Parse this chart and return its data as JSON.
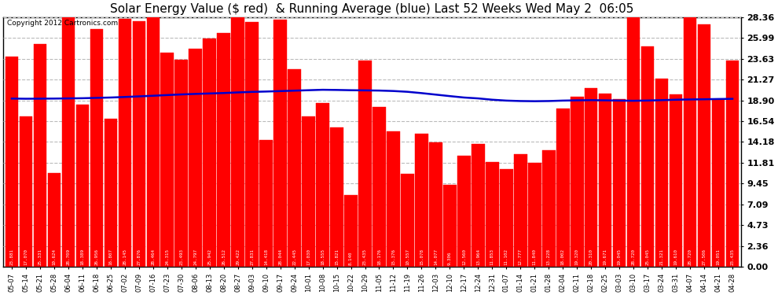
{
  "title": "Solar Energy Value ($ red)  & Running Average (blue) Last 52 Weeks Wed May 2  06:05",
  "copyright": "Copyright 2012 Cartronics.com",
  "bar_color": "#FF0000",
  "avg_line_color": "#0000CC",
  "background_color": "#FFFFFF",
  "grid_color": "#BBBBBB",
  "ylim": [
    0,
    28.36
  ],
  "yticks": [
    0.0,
    2.36,
    4.73,
    7.09,
    9.45,
    11.81,
    14.18,
    16.54,
    18.9,
    21.27,
    23.63,
    25.99,
    28.36
  ],
  "labels": [
    "05-07",
    "05-14",
    "05-21",
    "05-28",
    "06-04",
    "06-11",
    "06-18",
    "06-25",
    "07-02",
    "07-09",
    "07-16",
    "07-23",
    "07-30",
    "08-06",
    "08-13",
    "08-20",
    "08-27",
    "09-03",
    "09-10",
    "09-17",
    "09-24",
    "10-01",
    "10-08",
    "10-15",
    "10-22",
    "10-29",
    "11-05",
    "11-12",
    "11-19",
    "11-26",
    "12-03",
    "12-10",
    "12-17",
    "12-24",
    "12-31",
    "01-07",
    "01-14",
    "01-21",
    "01-28",
    "02-04",
    "02-11",
    "02-18",
    "02-25",
    "03-03",
    "03-10",
    "03-17",
    "03-24",
    "03-31",
    "04-07",
    "04-14",
    "04-21",
    "04-28"
  ],
  "bar_values": [
    23.881,
    17.07,
    25.331,
    10.624,
    28.709,
    18.389,
    26.956,
    16.807,
    28.145,
    27.876,
    28.464,
    24.315,
    23.493,
    24.797,
    25.942,
    26.512,
    29.422,
    27.831,
    14.418,
    28.044,
    22.445,
    17.03,
    18.555,
    15.821,
    8.14,
    23.435,
    18.176,
    15.376,
    10.557,
    15.078,
    14.077,
    9.306,
    12.56,
    13.964,
    11.853,
    11.102,
    12.777,
    11.84,
    13.228,
    18.002,
    19.32,
    20.31,
    19.671,
    19.045,
    28.72,
    25.045,
    21.321,
    19.61,
    28.72,
    27.506,
    19.051,
    23.435
  ],
  "avg_values": [
    19.1,
    19.08,
    19.09,
    19.1,
    19.12,
    19.14,
    19.18,
    19.22,
    19.28,
    19.35,
    19.42,
    19.5,
    19.57,
    19.63,
    19.68,
    19.73,
    19.8,
    19.86,
    19.9,
    19.95,
    20.0,
    20.05,
    20.1,
    20.08,
    20.05,
    20.03,
    20.01,
    19.96,
    19.87,
    19.72,
    19.55,
    19.38,
    19.22,
    19.12,
    18.97,
    18.87,
    18.82,
    18.8,
    18.82,
    18.87,
    18.9,
    18.92,
    18.9,
    18.87,
    18.85,
    18.88,
    18.92,
    18.97,
    19.0,
    19.02,
    19.05,
    19.07
  ]
}
